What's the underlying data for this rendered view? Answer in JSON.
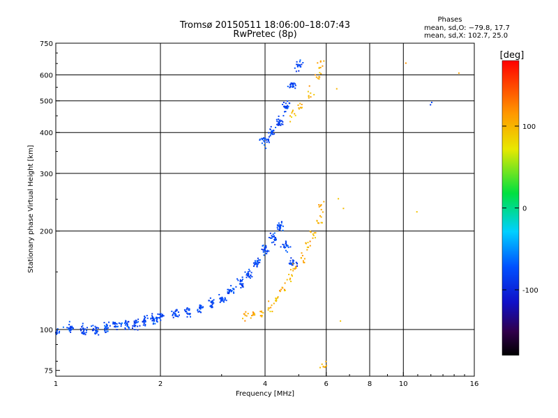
{
  "chart_data": {
    "type": "scatter",
    "title": "Tromsø 20150511 18:06:00–18:07:43",
    "subtitle": "RwPretec (8p)",
    "xlabel": "Frequency [MHz]",
    "ylabel": "Stationary phase Virtual Height [km]",
    "xscale": "log",
    "yscale": "log",
    "xlim": [
      1,
      16
    ],
    "ylim": [
      72,
      750
    ],
    "x_ticks": [
      1,
      2,
      4,
      6,
      8,
      10,
      16
    ],
    "x_tick_labels": [
      "1",
      "2",
      "4",
      "6",
      "8",
      "10",
      "16"
    ],
    "y_ticks": [
      75,
      100,
      200,
      300,
      400,
      500,
      600,
      750
    ],
    "y_tick_labels": [
      "75",
      "100",
      "200",
      "300",
      "400",
      "500",
      "600",
      "750"
    ],
    "x_grid": [
      2,
      4,
      6,
      8,
      10
    ],
    "y_grid": [
      100,
      200,
      300,
      400,
      500,
      600
    ],
    "legend": {
      "title": "Phases",
      "lines": [
        "mean, sd,O: −79.8, 17.7",
        "mean, sd,X: 102.7, 25.0"
      ],
      "placement": "top-right"
    },
    "colorbar": {
      "label": "[deg]",
      "range": [
        -180,
        180
      ],
      "ticks": [
        100,
        0,
        -100
      ],
      "tick_labels": [
        "100",
        "0",
        "-100"
      ]
    },
    "series": [
      {
        "name": "O-mode",
        "phase_mean": -79.8,
        "phase_sd": 17.7,
        "points": [
          [
            1.0,
            98
          ],
          [
            1.1,
            101
          ],
          [
            1.2,
            100
          ],
          [
            1.3,
            100
          ],
          [
            1.4,
            102
          ],
          [
            1.5,
            103
          ],
          [
            1.6,
            104
          ],
          [
            1.7,
            104
          ],
          [
            1.8,
            106
          ],
          [
            1.9,
            107
          ],
          [
            2.0,
            109
          ],
          [
            2.2,
            112
          ],
          [
            2.4,
            114
          ],
          [
            2.6,
            116
          ],
          [
            2.8,
            120
          ],
          [
            3.0,
            124
          ],
          [
            3.2,
            131
          ],
          [
            3.4,
            139
          ],
          [
            3.6,
            147
          ],
          [
            3.8,
            160
          ],
          [
            4.0,
            175
          ],
          [
            4.2,
            190
          ],
          [
            4.4,
            205
          ],
          [
            4.6,
            180
          ],
          [
            4.8,
            160
          ],
          [
            4.0,
            380
          ],
          [
            4.2,
            400
          ],
          [
            4.4,
            430
          ],
          [
            4.6,
            480
          ],
          [
            4.8,
            560
          ],
          [
            5.0,
            640
          ],
          [
            12.0,
            500
          ]
        ]
      },
      {
        "name": "X-mode",
        "phase_mean": 102.7,
        "phase_sd": 25.0,
        "points": [
          [
            3.5,
            110
          ],
          [
            3.7,
            111
          ],
          [
            3.9,
            113
          ],
          [
            4.1,
            117
          ],
          [
            4.3,
            124
          ],
          [
            4.5,
            134
          ],
          [
            4.7,
            142
          ],
          [
            4.9,
            155
          ],
          [
            5.1,
            165
          ],
          [
            5.3,
            180
          ],
          [
            5.5,
            195
          ],
          [
            5.7,
            215
          ],
          [
            5.8,
            240
          ],
          [
            4.8,
            450
          ],
          [
            5.1,
            480
          ],
          [
            5.4,
            530
          ],
          [
            5.7,
            600
          ],
          [
            5.8,
            640
          ],
          [
            6.5,
            545
          ],
          [
            6.5,
            250
          ],
          [
            6.8,
            235
          ],
          [
            6.5,
            105
          ],
          [
            5.9,
            77
          ],
          [
            10.0,
            655
          ],
          [
            11.0,
            230
          ],
          [
            14.5,
            605
          ]
        ]
      }
    ]
  }
}
